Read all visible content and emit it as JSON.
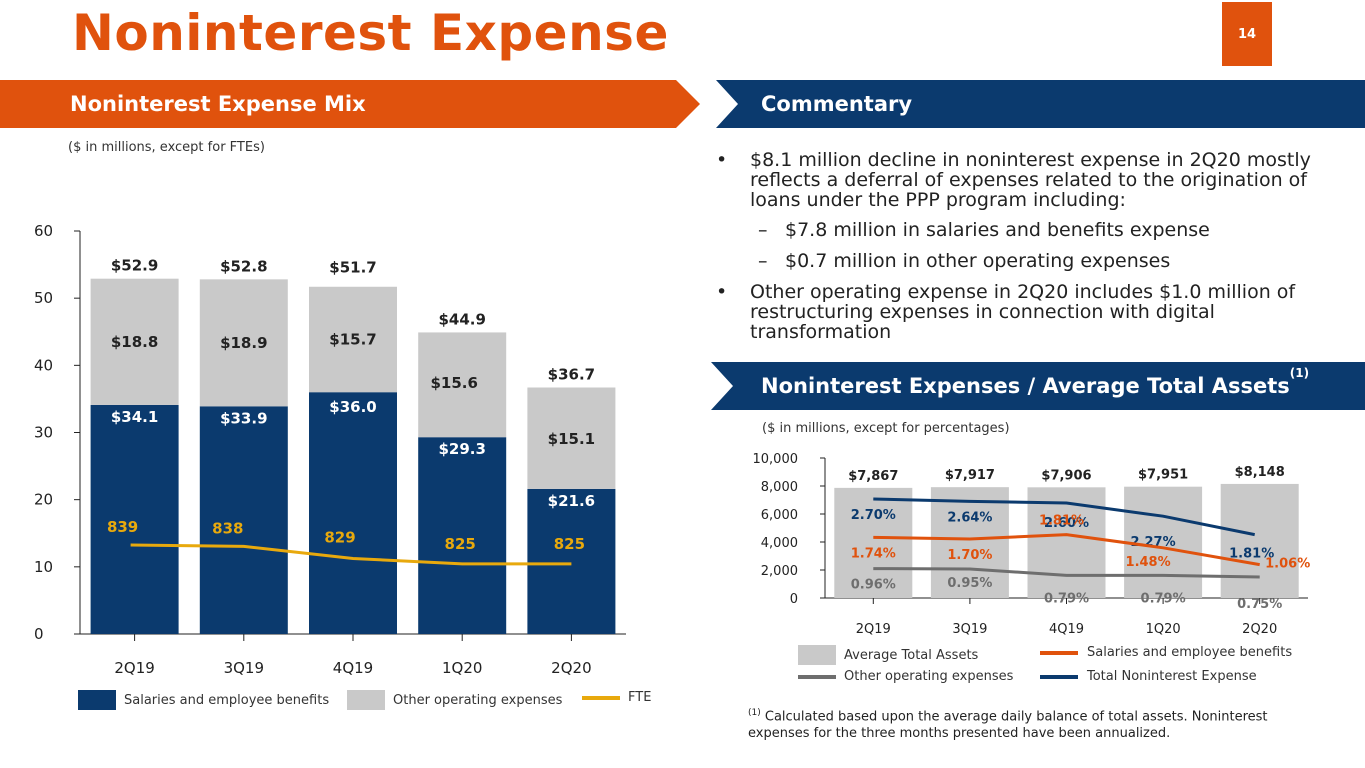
{
  "header": {
    "title": "Noninterest Expense",
    "page_number": "14"
  },
  "left_banner": "Noninterest Expense Mix",
  "commentary_banner": "Commentary",
  "ratio_banner": {
    "text": "Noninterest Expenses / Average Total Assets",
    "sup": "(1)"
  },
  "left_note": "($ in millions, except for FTEs)",
  "right_note": "($ in millions, except for percentages)",
  "commentary": {
    "b1": "$8.1 million decline in noninterest expense in 2Q20 mostly reflects a deferral of expenses related to the origination of loans under the PPP program including:",
    "s1": "$7.8 million in salaries and benefits expense",
    "s2": "$0.7 million in other operating expenses",
    "b2": "Other operating expense in 2Q20 includes $1.0 million of restructuring expenses in connection with digital transformation"
  },
  "footnote": {
    "sup": "(1)",
    "text": " Calculated based upon the average daily balance of total assets. Noninterest expenses for the three months presented have been annualized."
  },
  "left_legend": {
    "salaries": "Salaries and employee benefits",
    "other": "Other operating expenses",
    "fte": "FTE"
  },
  "right_legend": {
    "assets": "Average Total Assets",
    "salaries": "Salaries and employee benefits",
    "other": "Other operating expenses",
    "total": "Total Noninterest Expense"
  },
  "colors": {
    "orange": "#e0520d",
    "navy": "#0b3a6e",
    "gray_bar": "#c9c9c9",
    "fte_line": "#e8a90d",
    "other_line": "#6e6e6e"
  },
  "chart_data": [
    {
      "type": "bar",
      "stacked": true,
      "title": "Noninterest Expense Mix",
      "categories": [
        "2Q19",
        "3Q19",
        "4Q19",
        "1Q20",
        "2Q20"
      ],
      "ylim": [
        0,
        60
      ],
      "yticks": [
        "0",
        "10",
        "20",
        "30",
        "40",
        "50",
        "60"
      ],
      "series": [
        {
          "name": "Salaries and employee benefits",
          "values": [
            34.1,
            33.9,
            36.0,
            29.3,
            21.6
          ],
          "labels": [
            "$34.1",
            "$33.9",
            "$36.0",
            "$29.3",
            "$21.6"
          ]
        },
        {
          "name": "Other operating expenses",
          "values": [
            18.8,
            18.9,
            15.7,
            15.6,
            15.1
          ],
          "labels": [
            "$18.8",
            "$18.9",
            "$15.7",
            "$15.6",
            "$15.1"
          ]
        }
      ],
      "totals": [
        "$52.9",
        "$52.8",
        "$51.7",
        "$44.9",
        "$36.7"
      ],
      "fte": {
        "name": "FTE",
        "values": [
          839,
          838,
          829,
          825,
          825
        ],
        "labels": [
          "839",
          "838",
          "829",
          "825",
          "825"
        ]
      }
    },
    {
      "type": "bar",
      "title": "Noninterest Expenses / Average Total Assets",
      "categories": [
        "2Q19",
        "3Q19",
        "4Q19",
        "1Q20",
        "2Q20"
      ],
      "ylim": [
        0,
        10000
      ],
      "yticks": [
        "0",
        "2,000",
        "4,000",
        "6,000",
        "8,000",
        "10,000"
      ],
      "assets": {
        "name": "Average Total Assets",
        "values": [
          7867,
          7917,
          7906,
          7951,
          8148
        ],
        "labels": [
          "$7,867",
          "$7,917",
          "$7,906",
          "$7,951",
          "$8,148"
        ]
      },
      "lines": [
        {
          "name": "Total Noninterest Expense",
          "values": [
            2.7,
            2.64,
            2.6,
            2.27,
            1.81
          ],
          "labels": [
            "2.70%",
            "2.64%",
            "2.60%",
            "2.27%",
            "1.81%"
          ]
        },
        {
          "name": "Salaries and employee benefits",
          "values": [
            1.74,
            1.7,
            1.81,
            1.48,
            1.06
          ],
          "labels": [
            "1.74%",
            "1.70%",
            "1.81%",
            "1.48%",
            "1.06%"
          ]
        },
        {
          "name": "Other operating expenses",
          "values": [
            0.96,
            0.95,
            0.79,
            0.79,
            0.75
          ],
          "labels": [
            "0.96%",
            "0.95%",
            "0.79%",
            "0.79%",
            "0.75%"
          ]
        }
      ]
    }
  ]
}
